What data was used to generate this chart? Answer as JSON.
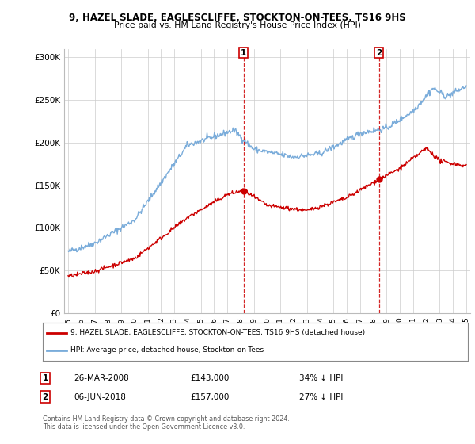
{
  "title_line1": "9, HAZEL SLADE, EAGLESCLIFFE, STOCKTON-ON-TEES, TS16 9HS",
  "title_line2": "Price paid vs. HM Land Registry's House Price Index (HPI)",
  "ylabel_ticks": [
    "£0",
    "£50K",
    "£100K",
    "£150K",
    "£200K",
    "£250K",
    "£300K"
  ],
  "ytick_vals": [
    0,
    50000,
    100000,
    150000,
    200000,
    250000,
    300000
  ],
  "ylim": [
    0,
    310000
  ],
  "xlim_start": 1994.7,
  "xlim_end": 2025.3,
  "transaction1_date": 2008.23,
  "transaction1_price": 143000,
  "transaction2_date": 2018.43,
  "transaction2_price": 157000,
  "legend_line1": "9, HAZEL SLADE, EAGLESCLIFFE, STOCKTON-ON-TEES, TS16 9HS (detached house)",
  "legend_line2": "HPI: Average price, detached house, Stockton-on-Tees",
  "table_row1": [
    "1",
    "26-MAR-2008",
    "£143,000",
    "34% ↓ HPI"
  ],
  "table_row2": [
    "2",
    "06-JUN-2018",
    "£157,000",
    "27% ↓ HPI"
  ],
  "footer": "Contains HM Land Registry data © Crown copyright and database right 2024.\nThis data is licensed under the Open Government Licence v3.0.",
  "hpi_color": "#7aacda",
  "price_color": "#cc0000",
  "vline_color": "#cc0000",
  "bg_color": "#ffffff",
  "grid_color": "#cccccc"
}
